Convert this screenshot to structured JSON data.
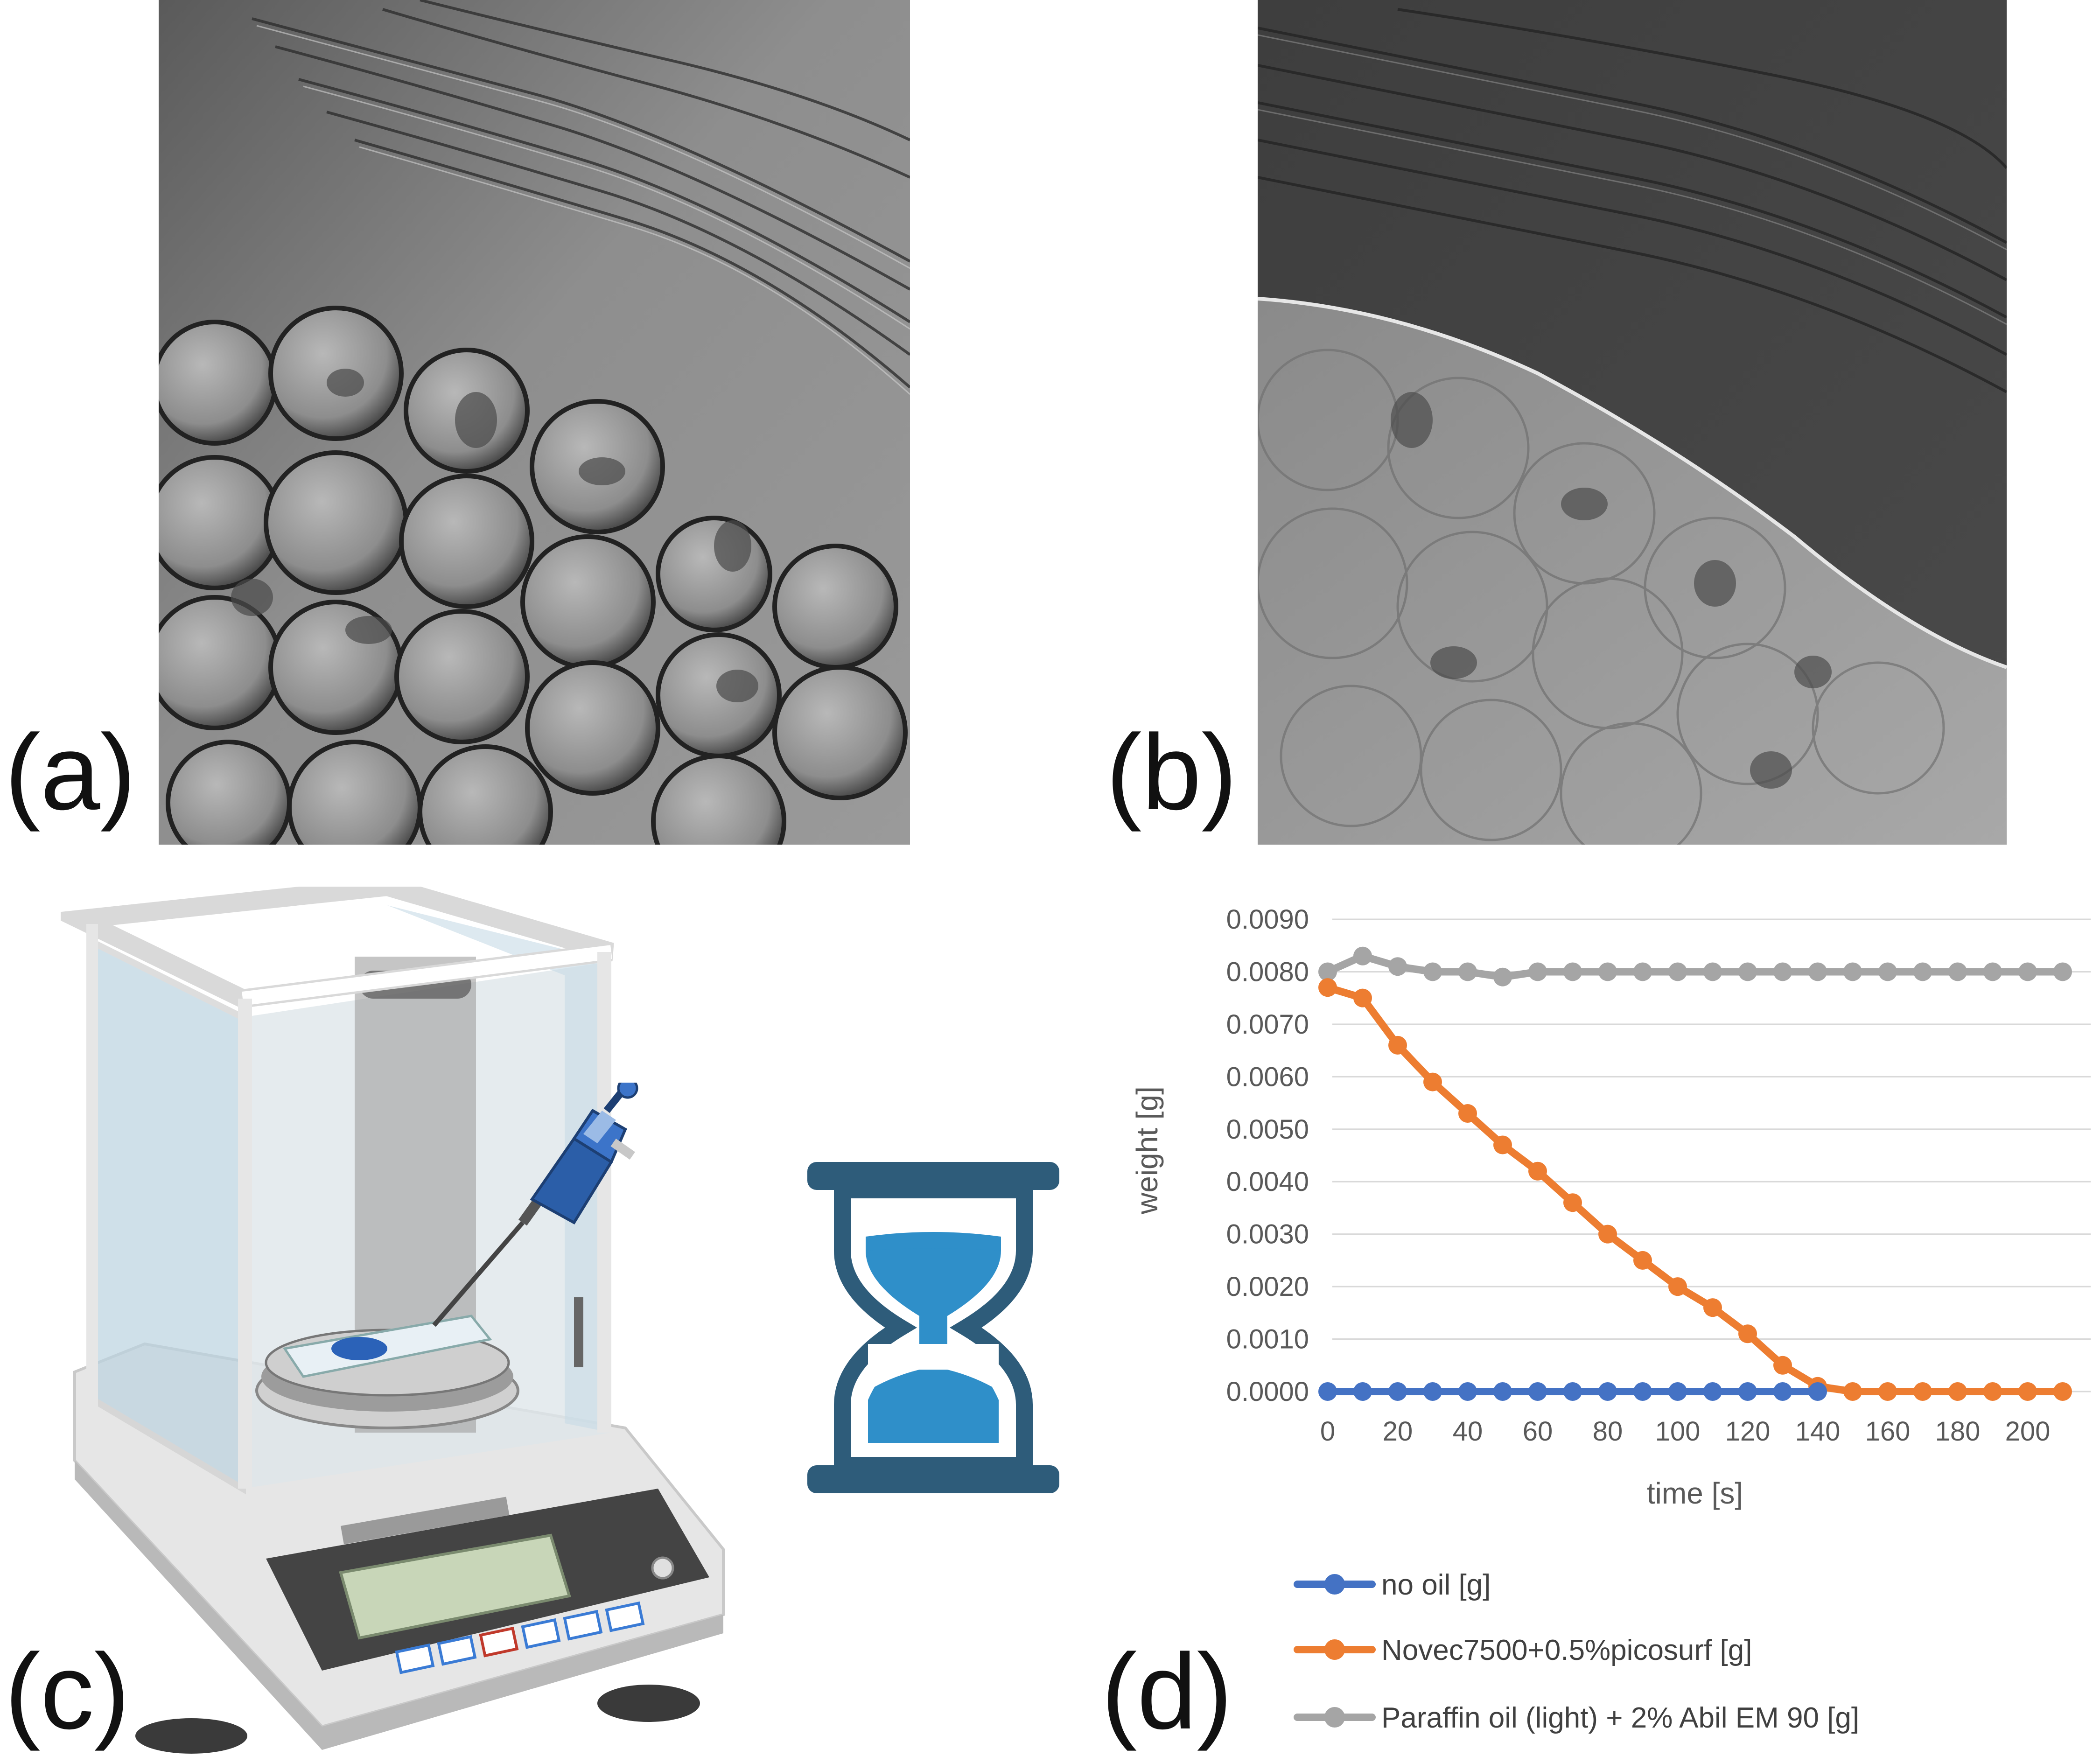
{
  "panels": {
    "a": {
      "label": "(a)"
    },
    "b": {
      "label": "(b)"
    },
    "c": {
      "label": "(c)"
    },
    "d": {
      "label": "(d)"
    }
  },
  "illustrations": {
    "photo_a": "micrograph-no-oil",
    "photo_b": "micrograph-with-oil",
    "balance": "analytical-balance-icon",
    "pipette": "pipette-icon",
    "hourglass": "hourglass-icon"
  },
  "colors": {
    "no_oil": "#4472C4",
    "novec": "#ED7D31",
    "paraffin": "#A5A5A5",
    "hourglass_frame": "#2E5C7A",
    "hourglass_sand": "#2F8FC9"
  },
  "chart_data": {
    "type": "line",
    "xlabel": "time [s]",
    "ylabel": "weight [g]",
    "xlim": [
      0,
      210
    ],
    "ylim": [
      0,
      0.009
    ],
    "x_ticks": [
      "0",
      "20",
      "40",
      "60",
      "80",
      "100",
      "120",
      "140",
      "160",
      "180",
      "200"
    ],
    "y_ticks": [
      "0.0000",
      "0.0010",
      "0.0020",
      "0.0030",
      "0.0040",
      "0.0050",
      "0.0060",
      "0.0070",
      "0.0080",
      "0.0090"
    ],
    "grid": "horizontal",
    "legend_position": "bottom",
    "series": [
      {
        "name": "no oil [g]",
        "color": "#4472C4",
        "x": [
          0,
          10,
          20,
          30,
          40,
          50,
          60,
          70,
          80,
          90,
          100,
          110,
          120,
          130,
          140
        ],
        "y": [
          0,
          0,
          0,
          0,
          0,
          0,
          0,
          0,
          0,
          0,
          0,
          0,
          0,
          0,
          0
        ]
      },
      {
        "name": "Novec7500+0.5%picosurf [g]",
        "color": "#ED7D31",
        "x": [
          0,
          10,
          20,
          30,
          40,
          50,
          60,
          70,
          80,
          90,
          100,
          110,
          120,
          130,
          140,
          150,
          160,
          170,
          180,
          190,
          200,
          210
        ],
        "y": [
          0.0077,
          0.0075,
          0.0066,
          0.0059,
          0.0053,
          0.0047,
          0.0042,
          0.0036,
          0.003,
          0.0025,
          0.002,
          0.0016,
          0.0011,
          0.0005,
          0.0001,
          0,
          0,
          0,
          0,
          0,
          0,
          0
        ]
      },
      {
        "name": "Paraffin oil (light) + 2% Abil EM 90 [g]",
        "color": "#A5A5A5",
        "x": [
          0,
          10,
          20,
          30,
          40,
          50,
          60,
          70,
          80,
          90,
          100,
          110,
          120,
          130,
          140,
          150,
          160,
          170,
          180,
          190,
          200,
          210
        ],
        "y": [
          0.008,
          0.0083,
          0.0081,
          0.008,
          0.008,
          0.0079,
          0.008,
          0.008,
          0.008,
          0.008,
          0.008,
          0.008,
          0.008,
          0.008,
          0.008,
          0.008,
          0.008,
          0.008,
          0.008,
          0.008,
          0.008,
          0.008
        ]
      }
    ]
  }
}
